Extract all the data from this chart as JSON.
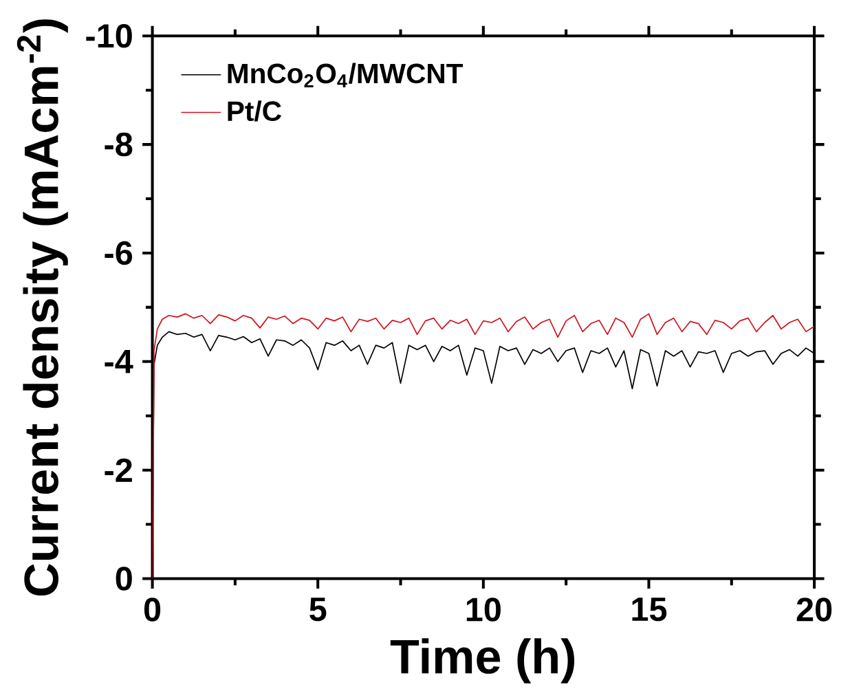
{
  "chart_data": {
    "type": "line",
    "xlabel": "Time (h)",
    "ylabel": "Current density (mAcm$^{-2}$)",
    "xlim": [
      0,
      20
    ],
    "ylim": [
      0,
      -10
    ],
    "xticks": [
      0,
      5,
      10,
      15,
      20
    ],
    "yticks": [
      0,
      -2,
      -4,
      -6,
      -8,
      -10
    ],
    "legend": "top left",
    "line_style": "solid",
    "marker": "none",
    "grid": false,
    "series": [
      {
        "name": "MnCo$_{2}$O$_{4}$/MWCNT",
        "color": "#000000",
        "x": [
          0,
          0.05,
          0.15,
          0.3,
          0.5,
          0.75,
          1,
          1.25,
          1.5,
          1.75,
          2,
          2.25,
          2.5,
          2.75,
          3,
          3.25,
          3.5,
          3.75,
          4,
          4.25,
          4.5,
          4.75,
          5,
          5.25,
          5.5,
          5.75,
          6,
          6.25,
          6.5,
          6.75,
          7,
          7.25,
          7.5,
          7.75,
          8,
          8.25,
          8.5,
          8.75,
          9,
          9.25,
          9.5,
          9.75,
          10,
          10.25,
          10.5,
          10.75,
          11,
          11.25,
          11.5,
          11.75,
          12,
          12.25,
          12.5,
          12.75,
          13,
          13.25,
          13.5,
          13.75,
          14,
          14.25,
          14.5,
          14.75,
          15,
          15.25,
          15.5,
          15.75,
          16,
          16.25,
          16.5,
          16.75,
          17,
          17.25,
          17.5,
          17.75,
          18,
          18.25,
          18.5,
          18.75,
          19,
          19.25,
          19.5,
          19.75,
          20
        ],
        "values": [
          0,
          -3.95,
          -4.3,
          -4.45,
          -4.55,
          -4.5,
          -4.52,
          -4.45,
          -4.5,
          -4.2,
          -4.48,
          -4.45,
          -4.4,
          -4.46,
          -4.35,
          -4.42,
          -4.1,
          -4.4,
          -4.38,
          -4.3,
          -4.4,
          -4.25,
          -3.85,
          -4.35,
          -4.3,
          -4.38,
          -4.2,
          -4.3,
          -3.95,
          -4.3,
          -4.25,
          -4.35,
          -3.6,
          -4.3,
          -4.22,
          -4.3,
          -4.0,
          -4.28,
          -4.2,
          -4.3,
          -3.75,
          -4.25,
          -4.2,
          -3.6,
          -4.28,
          -4.2,
          -4.25,
          -3.95,
          -4.22,
          -4.15,
          -4.25,
          -4.0,
          -4.2,
          -4.25,
          -3.8,
          -4.2,
          -4.15,
          -4.25,
          -3.9,
          -4.2,
          -3.5,
          -4.22,
          -4.15,
          -3.55,
          -4.2,
          -4.1,
          -4.2,
          -3.9,
          -4.18,
          -4.15,
          -4.2,
          -3.8,
          -4.15,
          -4.2,
          -4.1,
          -4.18,
          -4.2,
          -3.95,
          -4.15,
          -4.22,
          -4.1,
          -4.25,
          -4.15
        ]
      },
      {
        "name": "Pt/C",
        "color": "#d0121b",
        "x": [
          0,
          0.05,
          0.15,
          0.3,
          0.5,
          0.75,
          1,
          1.25,
          1.5,
          1.75,
          2,
          2.25,
          2.5,
          2.75,
          3,
          3.25,
          3.5,
          3.75,
          4,
          4.25,
          4.5,
          4.75,
          5,
          5.25,
          5.5,
          5.75,
          6,
          6.25,
          6.5,
          6.75,
          7,
          7.25,
          7.5,
          7.75,
          8,
          8.25,
          8.5,
          8.75,
          9,
          9.25,
          9.5,
          9.75,
          10,
          10.25,
          10.5,
          10.75,
          11,
          11.25,
          11.5,
          11.75,
          12,
          12.25,
          12.5,
          12.75,
          13,
          13.25,
          13.5,
          13.75,
          14,
          14.25,
          14.5,
          14.75,
          15,
          15.25,
          15.5,
          15.75,
          16,
          16.25,
          16.5,
          16.75,
          17,
          17.25,
          17.5,
          17.75,
          18,
          18.25,
          18.5,
          18.75,
          19,
          19.25,
          19.5,
          19.75,
          20
        ],
        "values": [
          0,
          -4.2,
          -4.6,
          -4.78,
          -4.85,
          -4.82,
          -4.88,
          -4.8,
          -4.85,
          -4.7,
          -4.86,
          -4.82,
          -4.75,
          -4.85,
          -4.8,
          -4.62,
          -4.82,
          -4.78,
          -4.84,
          -4.7,
          -4.8,
          -4.76,
          -4.6,
          -4.8,
          -4.75,
          -4.82,
          -4.55,
          -4.78,
          -4.74,
          -4.8,
          -4.6,
          -4.76,
          -4.72,
          -4.8,
          -4.5,
          -4.75,
          -4.8,
          -4.6,
          -4.76,
          -4.7,
          -4.78,
          -4.5,
          -4.75,
          -4.72,
          -4.8,
          -4.55,
          -4.74,
          -4.82,
          -4.6,
          -4.72,
          -4.78,
          -4.45,
          -4.75,
          -4.85,
          -4.55,
          -4.7,
          -4.76,
          -4.5,
          -4.8,
          -4.72,
          -4.45,
          -4.78,
          -4.88,
          -4.5,
          -4.72,
          -4.8,
          -4.55,
          -4.74,
          -4.7,
          -4.5,
          -4.76,
          -4.72,
          -4.6,
          -4.75,
          -4.8,
          -4.55,
          -4.72,
          -4.85,
          -4.6,
          -4.72,
          -4.78,
          -4.55,
          -4.65
        ]
      }
    ]
  }
}
